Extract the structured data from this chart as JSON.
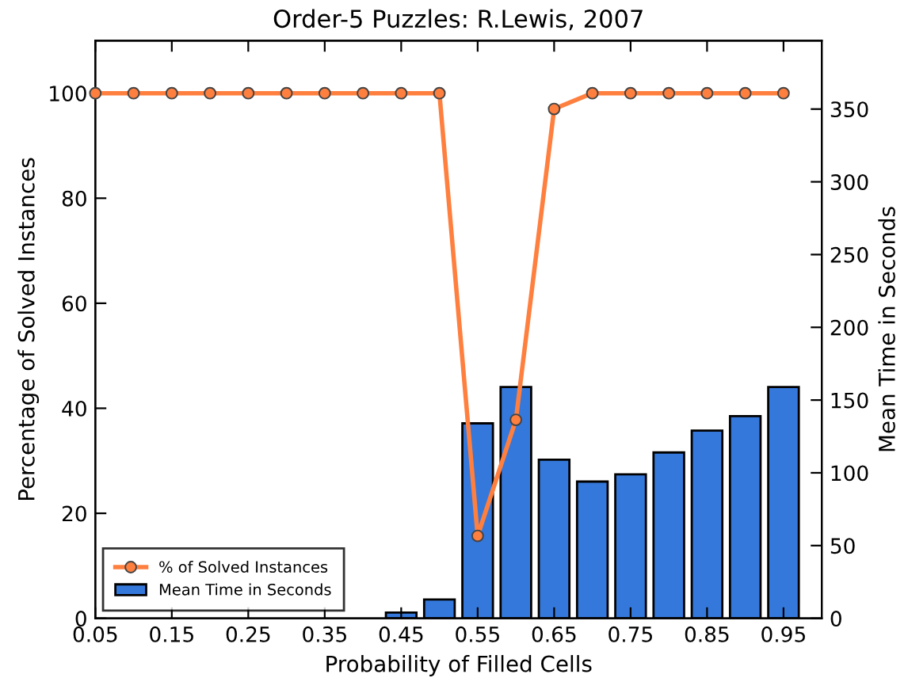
{
  "chart_data": {
    "type": "bar",
    "title": "Order-5 Puzzles: R.Lewis, 2007",
    "xlabel": "Probability of Filled Cells",
    "ylabel": "Percentage of Solved Instances",
    "y2label": "Mean Time in Seconds",
    "xlim": [
      0.05,
      1.0
    ],
    "xticks": [
      0.05,
      0.15,
      0.25,
      0.35,
      0.45,
      0.55,
      0.65,
      0.75,
      0.85,
      0.95
    ],
    "ylim": [
      0,
      110
    ],
    "yticks": [
      0,
      20,
      40,
      60,
      80,
      100
    ],
    "y2lim": [
      0,
      397
    ],
    "y2ticks": [
      0,
      50,
      100,
      150,
      200,
      250,
      300,
      350
    ],
    "grid": false,
    "legend": "bottom left",
    "series": [
      {
        "name": "% of Solved Instances",
        "type": "line",
        "color": "#ff7f3f",
        "marker": "circle",
        "line_style": "solid",
        "x": [
          0.05,
          0.1,
          0.15,
          0.2,
          0.25,
          0.3,
          0.35,
          0.4,
          0.45,
          0.5,
          0.55,
          0.6,
          0.65,
          0.7,
          0.75,
          0.8,
          0.85,
          0.9,
          0.95
        ],
        "values": [
          100,
          100,
          100,
          100,
          100,
          100,
          100,
          100,
          100,
          100,
          15.7,
          37.8,
          97,
          100,
          100,
          100,
          100,
          100,
          100
        ]
      },
      {
        "name": "Mean Time in Seconds",
        "axis": "y2",
        "color": "#3578db",
        "x": [
          0.45,
          0.5,
          0.55,
          0.6,
          0.65,
          0.7,
          0.75,
          0.8,
          0.85,
          0.9,
          0.95
        ],
        "values": [
          4,
          13,
          134,
          159,
          109,
          94,
          99,
          114,
          129,
          139,
          159
        ]
      }
    ]
  }
}
